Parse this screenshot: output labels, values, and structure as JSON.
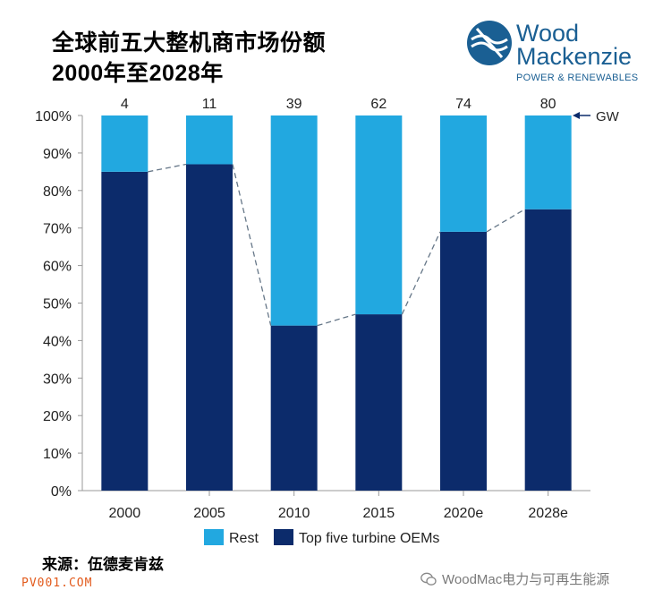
{
  "title": {
    "line1": "全球前五大整机商市场份额",
    "line2": "2000年至2028年"
  },
  "logo": {
    "word1": "Wood",
    "word2": "Mackenzie",
    "sub": "POWER & RENEWABLES"
  },
  "source": "来源：伍德麦肯兹",
  "watermark": "PV001.COM",
  "wechat": "WoodMac电力与可再生能源",
  "colors": {
    "top_five": "#0c2b6b",
    "rest": "#22a8e0",
    "connector": "#667788",
    "axis": "#999999"
  },
  "chart_data": {
    "type": "bar",
    "stacked": true,
    "categories": [
      "2000",
      "2005",
      "2010",
      "2015",
      "2020e",
      "2028e"
    ],
    "series": [
      {
        "name": "Top five turbine OEMs",
        "values": [
          85,
          87,
          44,
          47,
          69,
          75
        ]
      },
      {
        "name": "Rest",
        "values": [
          15,
          13,
          56,
          53,
          31,
          25
        ]
      }
    ],
    "totals_gw": [
      4,
      11,
      39,
      62,
      74,
      80
    ],
    "totals_unit": "GW",
    "ylim": [
      0,
      100
    ],
    "yticks": [
      "0%",
      "10%",
      "20%",
      "30%",
      "40%",
      "50%",
      "60%",
      "70%",
      "80%",
      "90%",
      "100%"
    ],
    "legend": [
      "Rest",
      "Top five turbine OEMs"
    ],
    "legend_position": "bottom",
    "connector": "dashed line joining tops of Top five segments"
  }
}
